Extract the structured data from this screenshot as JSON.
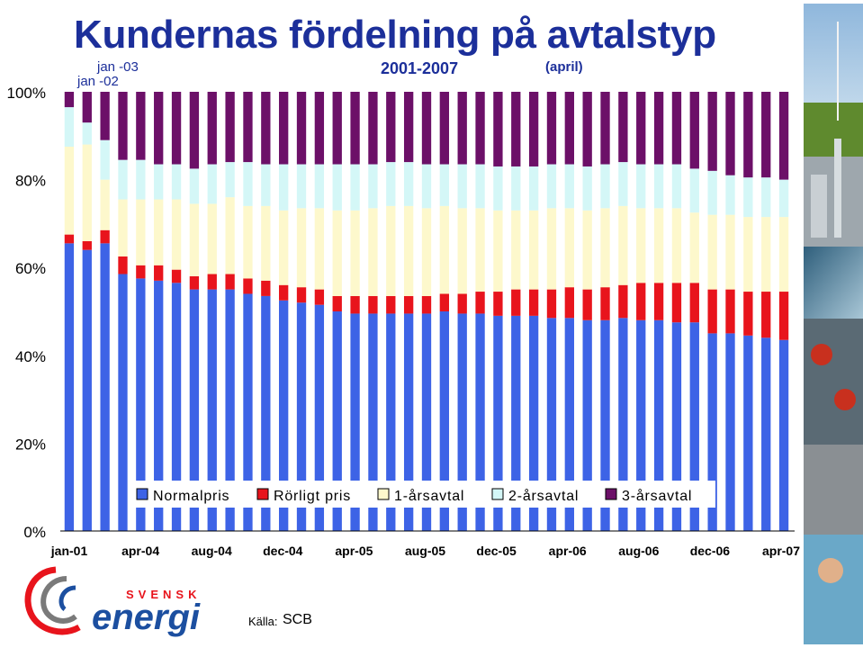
{
  "header": {
    "title": "Kundernas fördelning på avtalstyp",
    "period": "2001-2007",
    "note": "(april)",
    "annotation_top": "jan -03",
    "annotation_bottom": "jan -02"
  },
  "footer": {
    "logo_top": "SVENSK",
    "logo_main": "energi",
    "source_label": "Källa:",
    "source_value": "SCB"
  },
  "colors": {
    "title": "#1c2f9a",
    "normal": "#3d63e6",
    "rorligt": "#e8141c",
    "ett_ar": "#fdf8cc",
    "tva_ar": "#d4f7f7",
    "tre_ar": "#6c1068"
  },
  "chart_data": {
    "type": "bar",
    "stacked": true,
    "ylim": [
      0,
      100
    ],
    "yticks": [
      "0%",
      "20%",
      "40%",
      "60%",
      "80%",
      "100%"
    ],
    "x_tick_labels": [
      "jan-01",
      "apr-04",
      "aug-04",
      "dec-04",
      "apr-05",
      "aug-05",
      "dec-05",
      "apr-06",
      "aug-06",
      "dec-06",
      "apr-07"
    ],
    "legend_position": "bottom-center",
    "grid": false,
    "series": [
      {
        "name": "Normalpris",
        "color": "#3d63e6",
        "values": [
          65.5,
          64,
          65.5,
          58.5,
          57.5,
          57,
          56.5,
          55,
          55,
          55,
          54,
          53.5,
          52.5,
          52,
          51.5,
          50,
          49.5,
          49.5,
          49.5,
          49.5,
          49.5,
          50,
          49.5,
          49.5,
          49,
          49,
          49,
          48.5,
          48.5,
          48,
          48,
          48.5,
          48,
          48,
          47.5,
          47.5,
          45,
          45,
          44.5,
          44,
          43.5
        ]
      },
      {
        "name": "Rörligt pris",
        "color": "#e8141c",
        "values": [
          2,
          2,
          3,
          4,
          3,
          3.5,
          3,
          3,
          3.5,
          3.5,
          3.5,
          3.5,
          3.5,
          3.5,
          3.5,
          3.5,
          4,
          4,
          4,
          4,
          4,
          4,
          4.5,
          5,
          5.5,
          6,
          6,
          6.5,
          7,
          7,
          7.5,
          7.5,
          8.5,
          8.5,
          9,
          9,
          10,
          10,
          10,
          10.5,
          11
        ]
      },
      {
        "name": "1-årsavtal",
        "color": "#fdf8cc",
        "values": [
          20,
          22,
          11.5,
          13,
          15,
          15,
          16,
          16.5,
          16,
          17.5,
          16.5,
          17,
          17,
          18,
          18.5,
          19.5,
          19.5,
          20,
          20.5,
          20.5,
          20,
          20,
          19.5,
          19,
          18.5,
          18,
          18,
          18.5,
          18,
          18,
          18,
          18,
          17,
          17,
          17,
          16,
          17,
          17,
          17,
          17,
          17
        ]
      },
      {
        "name": "2-årsavtal",
        "color": "#d4f7f7",
        "values": [
          9,
          5,
          9,
          9,
          9,
          8,
          8,
          8,
          9,
          8,
          10,
          9.5,
          10.5,
          10,
          10,
          10.5,
          10.5,
          10,
          10,
          10,
          10,
          9.5,
          10,
          10,
          10,
          10,
          10,
          10,
          10,
          10,
          10,
          10,
          10,
          10,
          10,
          10,
          10,
          9,
          9,
          9,
          8.5
        ]
      },
      {
        "name": "3-årsavtal",
        "color": "#6c1068",
        "values": [
          3.5,
          7,
          11,
          15.5,
          15.5,
          16.5,
          16.5,
          17.5,
          16.5,
          16,
          16,
          16.5,
          16.5,
          16.5,
          16.5,
          16.5,
          16.5,
          16.5,
          16,
          16,
          16.5,
          16.5,
          16.5,
          16.5,
          17,
          17,
          17,
          16.5,
          16.5,
          17,
          16.5,
          16,
          16.5,
          16.5,
          16.5,
          17.5,
          18,
          19,
          19.5,
          19.5,
          20
        ]
      }
    ]
  }
}
